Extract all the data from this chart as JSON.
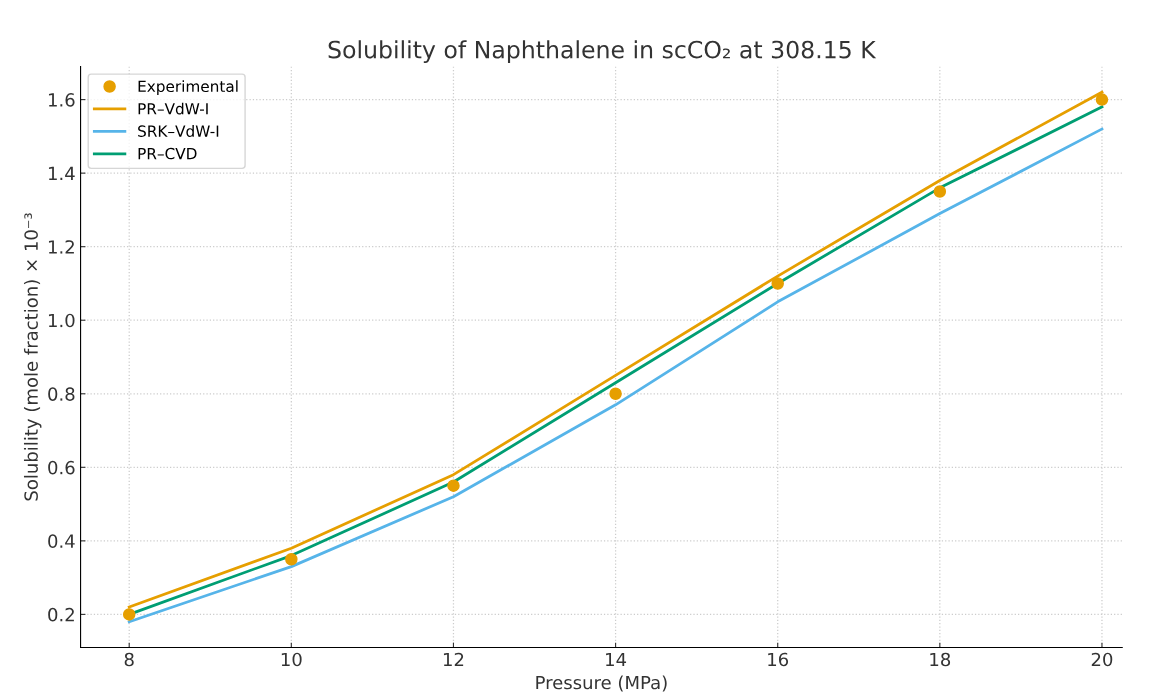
{
  "chart_data": {
    "type": "line",
    "title": "Solubility of Naphthalene in scCO₂ at 308.15 K",
    "xlabel": "Pressure (MPa)",
    "ylabel": "Solubility (mole fraction) × 10⁻³",
    "x": [
      8,
      10,
      12,
      14,
      16,
      18,
      20
    ],
    "series": [
      {
        "name": "Experimental",
        "type": "scatter",
        "marker": "circle",
        "color": "#e69f00",
        "values": [
          0.2,
          0.35,
          0.55,
          0.8,
          1.1,
          1.35,
          1.6
        ]
      },
      {
        "name": "PR–VdW-I",
        "color": "#e69f00",
        "values": [
          0.22,
          0.38,
          0.58,
          0.85,
          1.12,
          1.38,
          1.62
        ]
      },
      {
        "name": "SRK–VdW-I",
        "color": "#56b4e9",
        "values": [
          0.18,
          0.33,
          0.52,
          0.77,
          1.05,
          1.29,
          1.52
        ]
      },
      {
        "name": "PR–CVD",
        "color": "#009e73",
        "values": [
          0.2,
          0.36,
          0.56,
          0.83,
          1.1,
          1.36,
          1.58
        ]
      }
    ],
    "xlim": [
      7.4,
      20.25
    ],
    "ylim": [
      0.11,
      1.69
    ],
    "xticks": [
      8,
      10,
      12,
      14,
      16,
      18,
      20
    ],
    "yticks": [
      0.2,
      0.4,
      0.6,
      0.8,
      {
        "value": 1.0,
        "label": "1.0"
      },
      1.2,
      1.4,
      1.6
    ],
    "grid": true,
    "legend": "top left"
  }
}
